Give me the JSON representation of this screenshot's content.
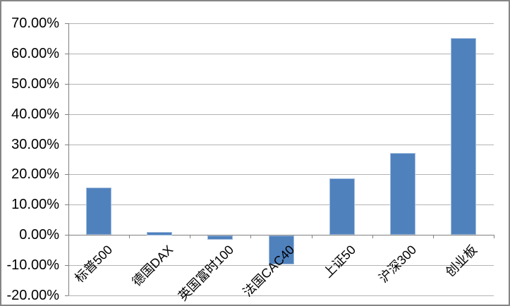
{
  "chart_data": {
    "type": "bar",
    "categories": [
      "标普500",
      "德国DAX",
      "英国富时100",
      "法国CAC40",
      "上证50",
      "沪深300",
      "创业板"
    ],
    "values": [
      15.7,
      1.1,
      -1.5,
      -9.5,
      18.7,
      27.0,
      65.0
    ],
    "ylim": [
      -20,
      70
    ],
    "ytick_step": 10,
    "ytick_labels": [
      "70.00%",
      "60.00%",
      "50.00%",
      "40.00%",
      "30.00%",
      "20.00%",
      "10.00%",
      "0.00%",
      "-10.00%",
      "-20.00%"
    ],
    "grid": true,
    "legend": false,
    "bar_color": "#4f81bd",
    "bar_border_color": "#a3bedf",
    "gridline_color": "#b3b3b3",
    "axis_color": "#808080",
    "text_color": "#000000",
    "frame_border_color": "#858585"
  }
}
